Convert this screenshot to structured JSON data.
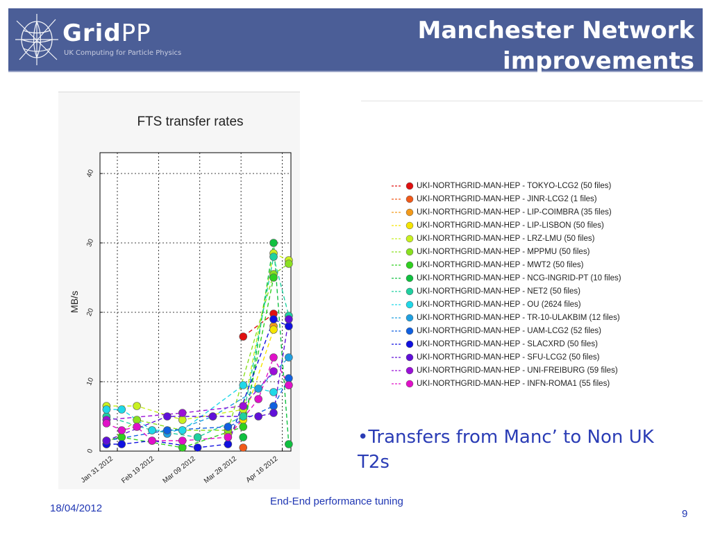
{
  "header": {
    "logo_text_bold": "Grid",
    "logo_text_light": "PP",
    "logo_tagline": "UK Computing for Particle Physics",
    "title_line1": "Manchester Network",
    "title_line2": "improvements",
    "background_color": "#4b5e97"
  },
  "bullet": {
    "text": "•Transfers from Manc’ to Non UK T2s"
  },
  "footer": {
    "date": "18/04/2012",
    "center": "End-End performance tuning",
    "page": "9"
  },
  "chart_data": {
    "type": "line",
    "title": "FTS transfer rates",
    "ylabel": "MB/s",
    "xlabel": "",
    "ylim": [
      0,
      43
    ],
    "yticks": [
      0,
      10,
      20,
      30,
      40
    ],
    "xticks": [
      "Jan 31 2012",
      "Feb 19 2012",
      "Mar 09 2012",
      "Mar 28 2012",
      "Apr 16 2012"
    ],
    "x_dates": [
      "2012-01-26",
      "2012-02-02",
      "2012-02-09",
      "2012-02-16",
      "2012-02-23",
      "2012-03-01",
      "2012-03-08",
      "2012-03-15",
      "2012-03-22",
      "2012-03-29",
      "2012-04-05",
      "2012-04-12",
      "2012-04-19"
    ],
    "grid": true,
    "line_style": "dashed",
    "legend_position": "right",
    "series": [
      {
        "name": "UKI-NORTHGRID-MAN-HEP - TOKYO-LCG2  (50 files)",
        "color": "#e01010",
        "points": [
          [
            "2012-03-29",
            16.5
          ],
          [
            "2012-04-12",
            19.8
          ]
        ]
      },
      {
        "name": "UKI-NORTHGRID-MAN-HEP - JINR-LCG2  (1 files)",
        "color": "#f05a1a",
        "points": [
          [
            "2012-03-29",
            0.5
          ]
        ]
      },
      {
        "name": "UKI-NORTHGRID-MAN-HEP - LIP-COIMBRA  (35 files)",
        "color": "#f39a1a",
        "points": [
          [
            "2012-04-12",
            18.0
          ]
        ]
      },
      {
        "name": "UKI-NORTHGRID-MAN-HEP - LIP-LISBON  (50 files)",
        "color": "#f5e500",
        "points": [
          [
            "2012-03-22",
            2.5
          ],
          [
            "2012-03-29",
            4.5
          ],
          [
            "2012-04-12",
            17.5
          ]
        ]
      },
      {
        "name": "UKI-NORTHGRID-MAN-HEP - LRZ-LMU  (50 files)",
        "color": "#c8f020",
        "points": [
          [
            "2012-01-26",
            6.5
          ],
          [
            "2012-02-09",
            6.5
          ],
          [
            "2012-03-01",
            4.5
          ],
          [
            "2012-03-29",
            6.0
          ],
          [
            "2012-04-12",
            28.5
          ],
          [
            "2012-04-19",
            27.5
          ]
        ]
      },
      {
        "name": "UKI-NORTHGRID-MAN-HEP - MPPMU  (50 files)",
        "color": "#8ae020",
        "points": [
          [
            "2012-01-26",
            1.0
          ],
          [
            "2012-02-09",
            4.5
          ],
          [
            "2012-03-01",
            3.0
          ],
          [
            "2012-03-22",
            3.0
          ],
          [
            "2012-04-12",
            25.5
          ],
          [
            "2012-04-19",
            27.0
          ]
        ]
      },
      {
        "name": "UKI-NORTHGRID-MAN-HEP - MWT2  (50 files)",
        "color": "#30d020",
        "points": [
          [
            "2012-01-26",
            1.5
          ],
          [
            "2012-02-02",
            2.0
          ],
          [
            "2012-03-01",
            0.5
          ],
          [
            "2012-03-29",
            3.5
          ],
          [
            "2012-04-12",
            25.0
          ]
        ]
      },
      {
        "name": "UKI-NORTHGRID-MAN-HEP - NCG-INGRID-PT  (10 files)",
        "color": "#10c040",
        "points": [
          [
            "2012-03-29",
            2.0
          ],
          [
            "2012-04-12",
            30.0
          ],
          [
            "2012-04-19",
            1.0
          ]
        ]
      },
      {
        "name": "UKI-NORTHGRID-MAN-HEP - NET2  (50 files)",
        "color": "#20d0a0",
        "points": [
          [
            "2012-01-26",
            5.0
          ],
          [
            "2012-02-16",
            3.0
          ],
          [
            "2012-03-08",
            2.0
          ],
          [
            "2012-03-29",
            5.0
          ],
          [
            "2012-04-12",
            28.0
          ],
          [
            "2012-04-19",
            19.5
          ]
        ]
      },
      {
        "name": "UKI-NORTHGRID-MAN-HEP - OU  (2624 files)",
        "color": "#20d8e8",
        "points": [
          [
            "2012-01-26",
            6.0
          ],
          [
            "2012-02-02",
            6.0
          ],
          [
            "2012-02-16",
            3.0
          ],
          [
            "2012-03-01",
            3.0
          ],
          [
            "2012-03-29",
            9.5
          ],
          [
            "2012-04-12",
            8.5
          ],
          [
            "2012-04-19",
            9.5
          ]
        ]
      },
      {
        "name": "UKI-NORTHGRID-MAN-HEP - TR-10-ULAKBIM  (12 files)",
        "color": "#20a0e0",
        "points": [
          [
            "2012-02-23",
            2.5
          ],
          [
            "2012-03-15",
            5.0
          ],
          [
            "2012-04-05",
            9.0
          ],
          [
            "2012-04-19",
            13.5
          ]
        ]
      },
      {
        "name": "UKI-NORTHGRID-MAN-HEP - UAM-LCG2  (52 files)",
        "color": "#1060e0",
        "points": [
          [
            "2012-01-26",
            1.5
          ],
          [
            "2012-02-23",
            3.0
          ],
          [
            "2012-03-22",
            3.5
          ],
          [
            "2012-04-12",
            6.5
          ],
          [
            "2012-04-19",
            10.5
          ]
        ]
      },
      {
        "name": "UKI-NORTHGRID-MAN-HEP - SLACXRD  (50 files)",
        "color": "#1010e0",
        "points": [
          [
            "2012-01-26",
            1.0
          ],
          [
            "2012-02-02",
            1.0
          ],
          [
            "2012-02-16",
            1.5
          ],
          [
            "2012-03-08",
            0.5
          ],
          [
            "2012-03-22",
            1.0
          ],
          [
            "2012-04-12",
            19.0
          ],
          [
            "2012-04-19",
            18.0
          ]
        ]
      },
      {
        "name": "UKI-NORTHGRID-MAN-HEP - SFU-LCG2  (50 files)",
        "color": "#6010d8",
        "points": [
          [
            "2012-01-26",
            1.5
          ],
          [
            "2012-02-23",
            5.0
          ],
          [
            "2012-03-15",
            5.0
          ],
          [
            "2012-04-05",
            5.0
          ],
          [
            "2012-04-12",
            5.5
          ],
          [
            "2012-04-19",
            19.0
          ]
        ]
      },
      {
        "name": "UKI-NORTHGRID-MAN-HEP - UNI-FREIBURG  (59 files)",
        "color": "#9a10d8",
        "points": [
          [
            "2012-01-26",
            4.5
          ],
          [
            "2012-03-01",
            5.5
          ],
          [
            "2012-03-29",
            6.5
          ],
          [
            "2012-04-12",
            11.5
          ]
        ]
      },
      {
        "name": "UKI-NORTHGRID-MAN-HEP - INFN-ROMA1  (55 files)",
        "color": "#e010c8",
        "points": [
          [
            "2012-01-26",
            4.0
          ],
          [
            "2012-02-02",
            3.0
          ],
          [
            "2012-02-09",
            3.5
          ],
          [
            "2012-02-16",
            1.5
          ],
          [
            "2012-03-01",
            1.5
          ],
          [
            "2012-03-22",
            2.0
          ],
          [
            "2012-04-05",
            7.5
          ],
          [
            "2012-04-12",
            13.5
          ],
          [
            "2012-04-19",
            9.5
          ]
        ]
      }
    ]
  }
}
